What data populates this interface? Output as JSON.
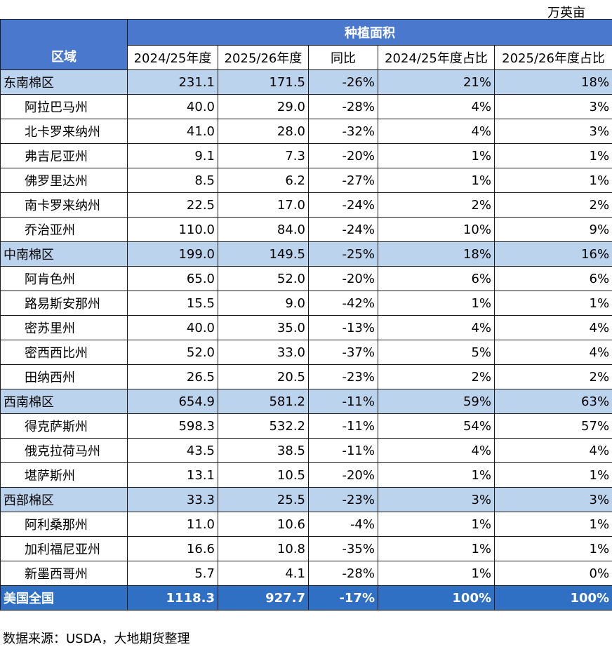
{
  "unit": "万英亩",
  "header": {
    "region_label": "区域",
    "group_label": "种植面积",
    "columns": [
      "2024/25年度",
      "2025/26年度",
      "同比",
      "2024/25年度占比",
      "2025/26年度占比"
    ]
  },
  "rows": [
    {
      "type": "region",
      "name": "东南棉区",
      "values": [
        "231.1",
        "171.5",
        "-26%",
        "21%",
        "18%"
      ]
    },
    {
      "type": "state",
      "name": "阿拉巴马州",
      "values": [
        "40.0",
        "29.0",
        "-28%",
        "4%",
        "3%"
      ]
    },
    {
      "type": "state",
      "name": "北卡罗来纳州",
      "values": [
        "41.0",
        "28.0",
        "-32%",
        "4%",
        "3%"
      ]
    },
    {
      "type": "state",
      "name": "弗吉尼亚州",
      "values": [
        "9.1",
        "7.3",
        "-20%",
        "1%",
        "1%"
      ]
    },
    {
      "type": "state",
      "name": "佛罗里达州",
      "values": [
        "8.5",
        "6.2",
        "-27%",
        "1%",
        "1%"
      ]
    },
    {
      "type": "state",
      "name": "南卡罗来纳州",
      "values": [
        "22.5",
        "17.0",
        "-24%",
        "2%",
        "2%"
      ]
    },
    {
      "type": "state",
      "name": "乔治亚州",
      "values": [
        "110.0",
        "84.0",
        "-24%",
        "10%",
        "9%"
      ]
    },
    {
      "type": "region",
      "name": "中南棉区",
      "values": [
        "199.0",
        "149.5",
        "-25%",
        "18%",
        "16%"
      ]
    },
    {
      "type": "state",
      "name": "阿肯色州",
      "values": [
        "65.0",
        "52.0",
        "-20%",
        "6%",
        "6%"
      ]
    },
    {
      "type": "state",
      "name": "路易斯安那州",
      "values": [
        "15.5",
        "9.0",
        "-42%",
        "1%",
        "1%"
      ]
    },
    {
      "type": "state",
      "name": "密苏里州",
      "values": [
        "40.0",
        "35.0",
        "-13%",
        "4%",
        "4%"
      ]
    },
    {
      "type": "state",
      "name": "密西西比州",
      "values": [
        "52.0",
        "33.0",
        "-37%",
        "5%",
        "4%"
      ]
    },
    {
      "type": "state",
      "name": "田纳西州",
      "values": [
        "26.5",
        "20.5",
        "-23%",
        "2%",
        "2%"
      ]
    },
    {
      "type": "region",
      "name": "西南棉区",
      "values": [
        "654.9",
        "581.2",
        "-11%",
        "59%",
        "63%"
      ]
    },
    {
      "type": "state",
      "name": "得克萨斯州",
      "values": [
        "598.3",
        "532.2",
        "-11%",
        "54%",
        "57%"
      ]
    },
    {
      "type": "state",
      "name": "俄克拉荷马州",
      "values": [
        "43.5",
        "38.5",
        "-11%",
        "4%",
        "4%"
      ]
    },
    {
      "type": "state",
      "name": "堪萨斯州",
      "values": [
        "13.1",
        "10.5",
        "-20%",
        "1%",
        "1%"
      ]
    },
    {
      "type": "region",
      "name": "西部棉区",
      "values": [
        "33.3",
        "25.5",
        "-23%",
        "3%",
        "3%"
      ]
    },
    {
      "type": "state",
      "name": "阿利桑那州",
      "values": [
        "11.0",
        "10.6",
        "-4%",
        "1%",
        "1%"
      ]
    },
    {
      "type": "state",
      "name": "加利福尼亚州",
      "values": [
        "16.6",
        "10.8",
        "-35%",
        "1%",
        "1%"
      ]
    },
    {
      "type": "state",
      "name": "新墨西哥州",
      "values": [
        "5.7",
        "4.1",
        "-28%",
        "1%",
        "0%"
      ]
    },
    {
      "type": "total",
      "name": "美国全国",
      "values": [
        "1118.3",
        "927.7",
        "-17%",
        "100%",
        "100%"
      ]
    }
  ],
  "source": "数据来源：USDA，大地期货整理"
}
